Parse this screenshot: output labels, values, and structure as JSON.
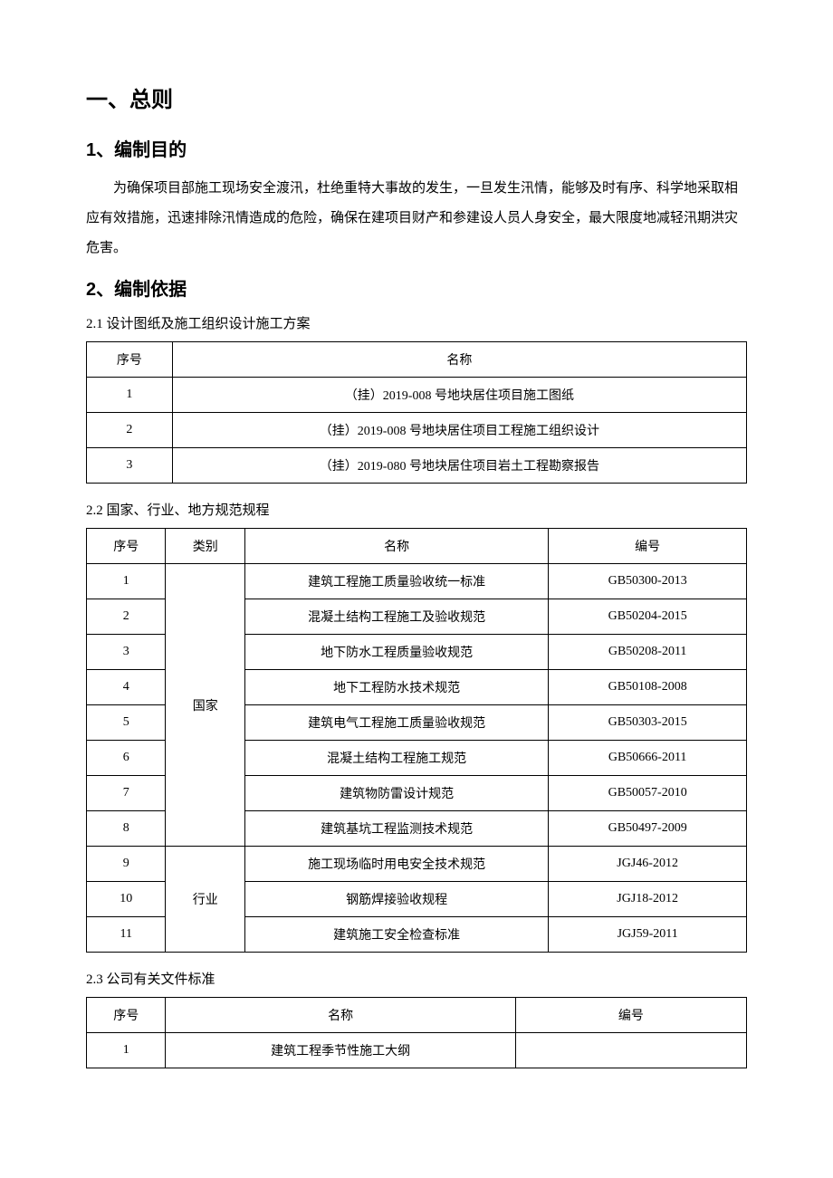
{
  "section1": {
    "title": "一、总则",
    "sub1": {
      "title": "1、编制目的",
      "paragraph": "为确保项目部施工现场安全渡汛，杜绝重特大事故的发生，一旦发生汛情，能够及时有序、科学地采取相应有效措施，迅速排除汛情造成的危险，确保在建项目财产和参建设人员人身安全，最大限度地减轻汛期洪灾危害。"
    },
    "sub2": {
      "title": "2、编制依据",
      "section21": {
        "title": "2.1  设计图纸及施工组织设计施工方案",
        "headers": {
          "col1": "序号",
          "col2": "名称"
        },
        "rows": [
          {
            "num": "1",
            "name": "（挂）2019-008 号地块居住项目施工图纸"
          },
          {
            "num": "2",
            "name": "（挂）2019-008 号地块居住项目工程施工组织设计"
          },
          {
            "num": "3",
            "name": "（挂）2019-080 号地块居住项目岩土工程勘察报告"
          }
        ]
      },
      "section22": {
        "title": "2.2  国家、行业、地方规范规程",
        "headers": {
          "col1": "序号",
          "col2": "类别",
          "col3": "名称",
          "col4": "编号"
        },
        "category1": "国家",
        "category2": "行业",
        "rows": [
          {
            "num": "1",
            "name": "建筑工程施工质量验收统一标准",
            "code": "GB50300-2013"
          },
          {
            "num": "2",
            "name": "混凝土结构工程施工及验收规范",
            "code": "GB50204-2015"
          },
          {
            "num": "3",
            "name": "地下防水工程质量验收规范",
            "code": "GB50208-2011"
          },
          {
            "num": "4",
            "name": "地下工程防水技术规范",
            "code": "GB50108-2008"
          },
          {
            "num": "5",
            "name": "建筑电气工程施工质量验收规范",
            "code": "GB50303-2015"
          },
          {
            "num": "6",
            "name": "混凝土结构工程施工规范",
            "code": "GB50666-2011"
          },
          {
            "num": "7",
            "name": "建筑物防雷设计规范",
            "code": "GB50057-2010"
          },
          {
            "num": "8",
            "name": "建筑基坑工程监测技术规范",
            "code": "GB50497-2009"
          },
          {
            "num": "9",
            "name": "施工现场临时用电安全技术规范",
            "code": "JGJ46-2012"
          },
          {
            "num": "10",
            "name": "钢筋焊接验收规程",
            "code": "JGJ18-2012"
          },
          {
            "num": "11",
            "name": "建筑施工安全检查标准",
            "code": "JGJ59-2011"
          }
        ]
      },
      "section23": {
        "title": "2.3  公司有关文件标准",
        "headers": {
          "col1": "序号",
          "col2": "名称",
          "col3": "编号"
        },
        "rows": [
          {
            "num": "1",
            "name": "建筑工程季节性施工大纲",
            "code": ""
          }
        ]
      }
    }
  },
  "styles": {
    "page_bg": "#ffffff",
    "text_color": "#000000",
    "border_color": "#000000",
    "heading1_fontsize": 24,
    "heading2_fontsize": 20,
    "body_fontsize": 15,
    "table_fontsize": 14,
    "line_height": 2.2
  }
}
